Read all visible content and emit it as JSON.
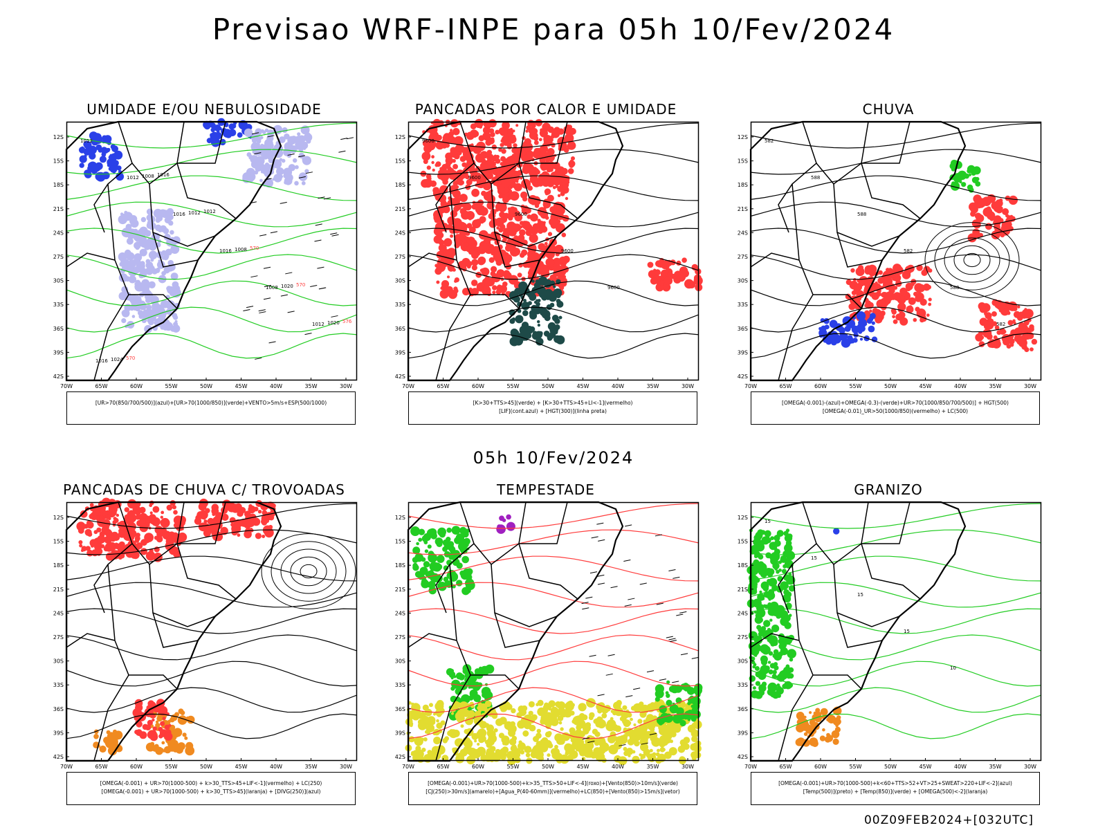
{
  "header": {
    "main_title": "Previsao WRF-INPE  para 05h 10/Fev/2024",
    "mid_title": "05h 10/Fev/2024",
    "footer": "00Z09FEB2024+[032UTC]"
  },
  "axes": {
    "lon_labels": [
      "70W",
      "65W",
      "60W",
      "55W",
      "50W",
      "45W",
      "40W",
      "35W",
      "30W"
    ],
    "lat_labels": [
      "12S",
      "15S",
      "18S",
      "21S",
      "24S",
      "27S",
      "30S",
      "33S",
      "36S",
      "39S",
      "42S"
    ]
  },
  "panels": [
    {
      "title": "UMIDADE E/OU NEBULOSIDADE",
      "legend": [
        "[UR>70(850/700/500)](azul)+[UR>70(1000/850)](verde)+VENTO>5m/s+ESP(500/1000)"
      ],
      "labels": [
        "1012",
        "1012",
        "1016",
        "1016",
        "1008",
        "1012",
        "1016",
        "1008",
        "1012",
        "1008",
        "1020",
        "1020",
        "1024",
        "1016",
        "1012",
        "570",
        "570",
        "576",
        "570"
      ]
    },
    {
      "title": "PANCADAS POR CALOR E UMIDADE",
      "legend": [
        "[K>30+TTS>45](verde) + [K>30+TTS>45+LI<-1](vermelho)",
        "[LIF](cont.azul) + [HGT(300)](linha preta)"
      ],
      "labels": [
        "9600",
        "9600",
        "9600",
        "9600",
        "9600"
      ]
    },
    {
      "title": "CHUVA",
      "legend": [
        "[OMEGA(-0.001)-(azul)+OMEGA(-0.3)-(verde)+UR>70(1000/850/700/500)] + HGT(500)",
        "[OMEGA(-0.01)_UR>50(1000/850)(vermelho) + LC(500)"
      ],
      "labels": [
        "582",
        "588",
        "588",
        "582",
        "588",
        "582"
      ]
    },
    {
      "title": "PANCADAS DE CHUVA C/ TROVOADAS",
      "legend": [
        "[OMEGA(-0.001) + UR>70(1000-500) + k>30_TTS>45+LIF<-1](vermelho) + LC(250)",
        "[OMEGA(-0.001) + UR>70(1000-500) + k>30_TTS>45](laranja) + [DIVG(250)](azul)"
      ],
      "labels": []
    },
    {
      "title": "TEMPESTADE",
      "legend": [
        "[OMEGA(-0.001)+UR>70(1000-500)+k>35_TTS>50+LIF<-4](roxo)+[Vento(850)>10m/s](verde)",
        "[CJ(250)>30m/s](amarelo)+[Agua_P(40-60mm)](vermelho)+LC(850)+[Vento(850)>15m/s](vetor)"
      ],
      "labels": []
    },
    {
      "title": "GRANIZO",
      "legend": [
        "[OMEGA(-0.001)+UR>70(1000-500)+k<60+TTS>52+VT>25+SWEAT>220+LIF<-2](azul)",
        "[Temp(500)](preto) + [Temp(850)](verde) + [OMEGA(500)<-2](laranja)"
      ],
      "labels": [
        "15",
        "15",
        "15",
        "15",
        "10"
      ]
    }
  ],
  "colors": {
    "red": "#ff3b3b",
    "green": "#22cc22",
    "blue": "#2a40e8",
    "lightblue": "#b8b8f0",
    "orange": "#f08a20",
    "yellow": "#e2dc30",
    "darkteal": "#1e4a48",
    "purple": "#a020c0"
  }
}
